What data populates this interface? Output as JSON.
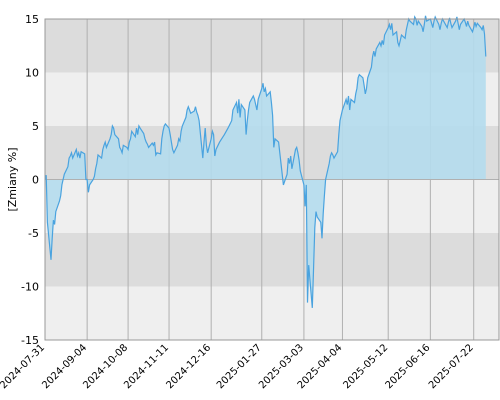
{
  "chart_data": {
    "type": "area",
    "ylabel": "[Zmiany %]",
    "ylim": [
      -15,
      15
    ],
    "yticks": [
      -15,
      -10,
      -5,
      0,
      5,
      10,
      15
    ],
    "xlim": [
      "2024-07-31",
      "2025-08-12"
    ],
    "xticks": [
      "2024-07-31",
      "2024-09-04",
      "2024-10-08",
      "2024-11-11",
      "2024-12-16",
      "2025-01-27",
      "2025-03-03",
      "2025-04-04",
      "2025-05-12",
      "2025-06-16",
      "2025-07-22"
    ],
    "grid": true,
    "colors": {
      "line": "#4aa3df",
      "fill": "#b4dced",
      "band_dark": "#dcdcdc",
      "band_light": "#efefef",
      "gridline": "#b0b0b0"
    },
    "series": [
      {
        "points": [
          [
            "2024-07-31",
            0.0
          ],
          [
            "2024-08-01",
            0.4
          ],
          [
            "2024-08-02",
            -4.0
          ],
          [
            "2024-08-05",
            -7.5
          ],
          [
            "2024-08-06",
            -5.5
          ],
          [
            "2024-08-07",
            -3.8
          ],
          [
            "2024-08-08",
            -4.2
          ],
          [
            "2024-08-09",
            -3.0
          ],
          [
            "2024-08-12",
            -2.0
          ],
          [
            "2024-08-13",
            -1.5
          ],
          [
            "2024-08-14",
            -0.5
          ],
          [
            "2024-08-15",
            0.0
          ],
          [
            "2024-08-16",
            0.5
          ],
          [
            "2024-08-19",
            1.2
          ],
          [
            "2024-08-20",
            2.0
          ],
          [
            "2024-08-21",
            2.2
          ],
          [
            "2024-08-22",
            2.5
          ],
          [
            "2024-08-23",
            2.0
          ],
          [
            "2024-08-26",
            2.8
          ],
          [
            "2024-08-27",
            2.2
          ],
          [
            "2024-08-28",
            2.5
          ],
          [
            "2024-08-29",
            2.0
          ],
          [
            "2024-08-30",
            2.6
          ],
          [
            "2024-09-02",
            2.4
          ],
          [
            "2024-09-03",
            0.0
          ],
          [
            "2024-09-04",
            0.0
          ],
          [
            "2024-09-05",
            -1.2
          ],
          [
            "2024-09-06",
            -0.5
          ],
          [
            "2024-09-09",
            0.0
          ],
          [
            "2024-09-10",
            0.3
          ],
          [
            "2024-09-11",
            1.0
          ],
          [
            "2024-09-12",
            1.5
          ],
          [
            "2024-09-13",
            2.3
          ],
          [
            "2024-09-16",
            2.0
          ],
          [
            "2024-09-17",
            2.8
          ],
          [
            "2024-09-18",
            3.2
          ],
          [
            "2024-09-19",
            3.5
          ],
          [
            "2024-09-20",
            3.0
          ],
          [
            "2024-09-23",
            3.8
          ],
          [
            "2024-09-24",
            4.2
          ],
          [
            "2024-09-25",
            5.0
          ],
          [
            "2024-09-26",
            4.8
          ],
          [
            "2024-09-27",
            4.2
          ],
          [
            "2024-09-30",
            3.8
          ],
          [
            "2024-10-01",
            3.0
          ],
          [
            "2024-10-02",
            2.8
          ],
          [
            "2024-10-03",
            2.5
          ],
          [
            "2024-10-04",
            3.2
          ],
          [
            "2024-10-07",
            3.0
          ],
          [
            "2024-10-08",
            2.8
          ],
          [
            "2024-10-09",
            3.5
          ],
          [
            "2024-10-10",
            3.8
          ],
          [
            "2024-10-11",
            4.5
          ],
          [
            "2024-10-14",
            4.0
          ],
          [
            "2024-10-15",
            4.8
          ],
          [
            "2024-10-16",
            4.2
          ],
          [
            "2024-10-17",
            5.0
          ],
          [
            "2024-10-18",
            4.8
          ],
          [
            "2024-10-21",
            4.3
          ],
          [
            "2024-10-22",
            3.8
          ],
          [
            "2024-10-23",
            3.5
          ],
          [
            "2024-10-24",
            3.3
          ],
          [
            "2024-10-25",
            3.0
          ],
          [
            "2024-10-28",
            3.4
          ],
          [
            "2024-10-29",
            3.2
          ],
          [
            "2024-10-30",
            3.5
          ],
          [
            "2024-10-31",
            2.3
          ],
          [
            "2024-11-01",
            2.5
          ],
          [
            "2024-11-04",
            2.4
          ],
          [
            "2024-11-05",
            3.8
          ],
          [
            "2024-11-06",
            4.5
          ],
          [
            "2024-11-07",
            5.0
          ],
          [
            "2024-11-08",
            5.2
          ],
          [
            "2024-11-11",
            4.8
          ],
          [
            "2024-11-12",
            4.2
          ],
          [
            "2024-11-13",
            3.5
          ],
          [
            "2024-11-14",
            2.8
          ],
          [
            "2024-11-15",
            2.5
          ],
          [
            "2024-11-18",
            3.2
          ],
          [
            "2024-11-19",
            3.8
          ],
          [
            "2024-11-20",
            3.6
          ],
          [
            "2024-11-21",
            4.5
          ],
          [
            "2024-11-22",
            5.0
          ],
          [
            "2024-11-25",
            5.8
          ],
          [
            "2024-11-26",
            6.5
          ],
          [
            "2024-11-27",
            6.8
          ],
          [
            "2024-11-28",
            6.5
          ],
          [
            "2024-11-29",
            6.2
          ],
          [
            "2024-12-02",
            6.4
          ],
          [
            "2024-12-03",
            6.8
          ],
          [
            "2024-12-04",
            6.3
          ],
          [
            "2024-12-05",
            6.0
          ],
          [
            "2024-12-06",
            5.5
          ],
          [
            "2024-12-09",
            2.0
          ],
          [
            "2024-12-10",
            3.5
          ],
          [
            "2024-12-11",
            4.8
          ],
          [
            "2024-12-12",
            3.2
          ],
          [
            "2024-12-13",
            2.5
          ],
          [
            "2024-12-16",
            3.8
          ],
          [
            "2024-12-17",
            4.5
          ],
          [
            "2024-12-18",
            4.2
          ],
          [
            "2024-12-19",
            2.2
          ],
          [
            "2024-12-20",
            2.8
          ],
          [
            "2024-12-23",
            3.5
          ],
          [
            "2024-12-27",
            4.2
          ],
          [
            "2024-12-30",
            4.8
          ],
          [
            "2025-01-02",
            5.5
          ],
          [
            "2025-01-03",
            6.5
          ],
          [
            "2025-01-06",
            7.2
          ],
          [
            "2025-01-07",
            6.2
          ],
          [
            "2025-01-08",
            7.5
          ],
          [
            "2025-01-09",
            5.8
          ],
          [
            "2025-01-10",
            7.0
          ],
          [
            "2025-01-13",
            6.5
          ],
          [
            "2025-01-14",
            4.2
          ],
          [
            "2025-01-15",
            5.5
          ],
          [
            "2025-01-16",
            6.5
          ],
          [
            "2025-01-17",
            7.2
          ],
          [
            "2025-01-20",
            7.8
          ],
          [
            "2025-01-21",
            7.5
          ],
          [
            "2025-01-22",
            7.0
          ],
          [
            "2025-01-23",
            6.5
          ],
          [
            "2025-01-24",
            7.5
          ],
          [
            "2025-01-27",
            8.5
          ],
          [
            "2025-01-28",
            9.0
          ],
          [
            "2025-01-29",
            8.2
          ],
          [
            "2025-01-30",
            8.5
          ],
          [
            "2025-01-31",
            7.8
          ],
          [
            "2025-02-03",
            8.2
          ],
          [
            "2025-02-04",
            7.2
          ],
          [
            "2025-02-05",
            6.0
          ],
          [
            "2025-02-06",
            3.0
          ],
          [
            "2025-02-07",
            3.8
          ],
          [
            "2025-02-10",
            3.5
          ],
          [
            "2025-02-11",
            2.5
          ],
          [
            "2025-02-12",
            1.5
          ],
          [
            "2025-02-13",
            0.5
          ],
          [
            "2025-02-14",
            -0.5
          ],
          [
            "2025-02-17",
            0.5
          ],
          [
            "2025-02-18",
            2.0
          ],
          [
            "2025-02-19",
            1.5
          ],
          [
            "2025-02-20",
            2.2
          ],
          [
            "2025-02-21",
            1.0
          ],
          [
            "2025-02-24",
            2.8
          ],
          [
            "2025-02-25",
            3.0
          ],
          [
            "2025-02-26",
            2.5
          ],
          [
            "2025-02-27",
            1.8
          ],
          [
            "2025-02-28",
            0.8
          ],
          [
            "2025-03-03",
            -0.5
          ],
          [
            "2025-03-04",
            -2.5
          ],
          [
            "2025-03-05",
            -0.5
          ],
          [
            "2025-03-06",
            -11.5
          ],
          [
            "2025-03-07",
            -8.0
          ],
          [
            "2025-03-10",
            -12.0
          ],
          [
            "2025-03-11",
            -8.5
          ],
          [
            "2025-03-12",
            -4.5
          ],
          [
            "2025-03-13",
            -3.0
          ],
          [
            "2025-03-14",
            -3.5
          ],
          [
            "2025-03-17",
            -4.0
          ],
          [
            "2025-03-18",
            -5.5
          ],
          [
            "2025-03-19",
            -3.2
          ],
          [
            "2025-03-20",
            -1.5
          ],
          [
            "2025-03-21",
            0.0
          ],
          [
            "2025-03-24",
            1.5
          ],
          [
            "2025-03-25",
            2.2
          ],
          [
            "2025-03-26",
            2.5
          ],
          [
            "2025-03-27",
            2.3
          ],
          [
            "2025-03-28",
            2.0
          ],
          [
            "2025-03-31",
            2.6
          ],
          [
            "2025-04-01",
            4.2
          ],
          [
            "2025-04-02",
            5.5
          ],
          [
            "2025-04-03",
            6.0
          ],
          [
            "2025-04-04",
            6.5
          ],
          [
            "2025-04-07",
            7.5
          ],
          [
            "2025-04-08",
            7.0
          ],
          [
            "2025-04-09",
            7.8
          ],
          [
            "2025-04-10",
            6.5
          ],
          [
            "2025-04-11",
            7.5
          ],
          [
            "2025-04-14",
            7.2
          ],
          [
            "2025-04-15",
            8.0
          ],
          [
            "2025-04-16",
            8.5
          ],
          [
            "2025-04-17",
            9.5
          ],
          [
            "2025-04-18",
            9.8
          ],
          [
            "2025-04-21",
            9.5
          ],
          [
            "2025-04-22",
            8.8
          ],
          [
            "2025-04-23",
            8.0
          ],
          [
            "2025-04-24",
            8.5
          ],
          [
            "2025-04-25",
            9.5
          ],
          [
            "2025-04-28",
            10.5
          ],
          [
            "2025-04-29",
            11.5
          ],
          [
            "2025-04-30",
            12.0
          ],
          [
            "2025-05-01",
            11.5
          ],
          [
            "2025-05-02",
            12.2
          ],
          [
            "2025-05-05",
            12.8
          ],
          [
            "2025-05-06",
            12.5
          ],
          [
            "2025-05-07",
            13.0
          ],
          [
            "2025-05-08",
            12.6
          ],
          [
            "2025-05-09",
            13.5
          ],
          [
            "2025-05-12",
            14.2
          ],
          [
            "2025-05-13",
            14.5
          ],
          [
            "2025-05-14",
            14.0
          ],
          [
            "2025-05-15",
            14.6
          ],
          [
            "2025-05-16",
            13.5
          ],
          [
            "2025-05-19",
            13.8
          ],
          [
            "2025-05-20",
            12.8
          ],
          [
            "2025-05-21",
            12.5
          ],
          [
            "2025-05-22",
            13.0
          ],
          [
            "2025-05-23",
            13.5
          ],
          [
            "2025-05-26",
            13.2
          ],
          [
            "2025-05-27",
            14.0
          ],
          [
            "2025-05-28",
            14.5
          ],
          [
            "2025-05-29",
            15.0
          ],
          [
            "2025-05-30",
            14.8
          ],
          [
            "2025-06-02",
            14.5
          ],
          [
            "2025-06-03",
            15.2
          ],
          [
            "2025-06-04",
            15.0
          ],
          [
            "2025-06-05",
            14.4
          ],
          [
            "2025-06-06",
            14.8
          ],
          [
            "2025-06-09",
            14.3
          ],
          [
            "2025-06-10",
            13.8
          ],
          [
            "2025-06-11",
            14.5
          ],
          [
            "2025-06-12",
            15.3
          ],
          [
            "2025-06-13",
            14.8
          ],
          [
            "2025-06-16",
            15.0
          ],
          [
            "2025-06-17",
            14.6
          ],
          [
            "2025-06-18",
            14.2
          ],
          [
            "2025-06-19",
            14.8
          ],
          [
            "2025-06-20",
            15.2
          ],
          [
            "2025-06-23",
            14.5
          ],
          [
            "2025-06-24",
            14.0
          ],
          [
            "2025-06-25",
            14.6
          ],
          [
            "2025-06-26",
            15.0
          ],
          [
            "2025-06-27",
            14.8
          ],
          [
            "2025-06-30",
            14.2
          ],
          [
            "2025-07-01",
            14.7
          ],
          [
            "2025-07-02",
            15.1
          ],
          [
            "2025-07-03",
            14.6
          ],
          [
            "2025-07-04",
            14.2
          ],
          [
            "2025-07-07",
            14.8
          ],
          [
            "2025-07-08",
            15.2
          ],
          [
            "2025-07-09",
            14.6
          ],
          [
            "2025-07-10",
            14.0
          ],
          [
            "2025-07-11",
            14.5
          ],
          [
            "2025-07-14",
            15.0
          ],
          [
            "2025-07-15",
            14.7
          ],
          [
            "2025-07-16",
            14.3
          ],
          [
            "2025-07-17",
            14.8
          ],
          [
            "2025-07-18",
            14.4
          ],
          [
            "2025-07-21",
            13.8
          ],
          [
            "2025-07-22",
            14.2
          ],
          [
            "2025-07-23",
            14.7
          ],
          [
            "2025-07-24",
            14.3
          ],
          [
            "2025-07-25",
            14.6
          ],
          [
            "2025-07-28",
            14.2
          ],
          [
            "2025-07-29",
            14.0
          ],
          [
            "2025-07-30",
            14.4
          ],
          [
            "2025-07-31",
            13.6
          ],
          [
            "2025-08-01",
            11.5
          ]
        ]
      }
    ]
  }
}
